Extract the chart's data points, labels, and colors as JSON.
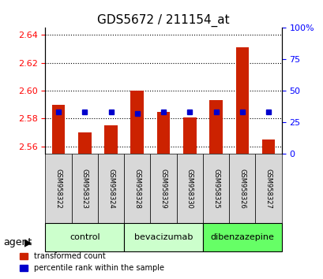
{
  "title": "GDS5672 / 211154_at",
  "samples": [
    "GSM958322",
    "GSM958323",
    "GSM958324",
    "GSM958328",
    "GSM958329",
    "GSM958330",
    "GSM958325",
    "GSM958326",
    "GSM958327"
  ],
  "transformed_count": [
    2.59,
    2.57,
    2.575,
    2.6,
    2.585,
    2.581,
    2.593,
    2.631,
    2.565
  ],
  "percentile_rank": [
    33,
    33,
    33,
    32,
    33,
    33,
    33,
    33,
    33
  ],
  "groups": [
    {
      "label": "control",
      "start": 0,
      "end": 2,
      "color": "#ccffcc"
    },
    {
      "label": "bevacizumab",
      "start": 3,
      "end": 5,
      "color": "#ccffcc"
    },
    {
      "label": "dibenzazepine",
      "start": 6,
      "end": 8,
      "color": "#66ff66"
    }
  ],
  "ylim_left": [
    2.555,
    2.645
  ],
  "yticks_left": [
    2.56,
    2.58,
    2.6,
    2.62,
    2.64
  ],
  "ylim_right": [
    0,
    100
  ],
  "yticks_right": [
    0,
    25,
    50,
    75,
    100
  ],
  "bar_color_red": "#cc2200",
  "bar_color_blue": "#0000cc",
  "bar_width": 0.5,
  "baseline": 2.555
}
